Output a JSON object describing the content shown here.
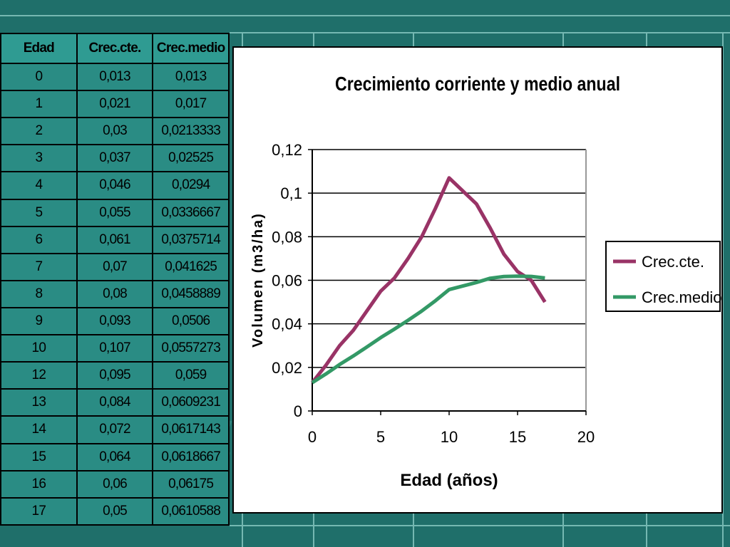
{
  "table": {
    "headers": [
      "Edad",
      "Crec.cte.",
      "Crec.medio"
    ],
    "rows": [
      [
        "0",
        "0,013",
        "0,013"
      ],
      [
        "1",
        "0,021",
        "0,017"
      ],
      [
        "2",
        "0,03",
        "0,0213333"
      ],
      [
        "3",
        "0,037",
        "0,02525"
      ],
      [
        "4",
        "0,046",
        "0,0294"
      ],
      [
        "5",
        "0,055",
        "0,0336667"
      ],
      [
        "6",
        "0,061",
        "0,0375714"
      ],
      [
        "7",
        "0,07",
        "0,041625"
      ],
      [
        "8",
        "0,08",
        "0,0458889"
      ],
      [
        "9",
        "0,093",
        "0,0506"
      ],
      [
        "10",
        "0,107",
        "0,0557273"
      ],
      [
        "12",
        "0,095",
        "0,059"
      ],
      [
        "13",
        "0,084",
        "0,0609231"
      ],
      [
        "14",
        "0,072",
        "0,0617143"
      ],
      [
        "15",
        "0,064",
        "0,0618667"
      ],
      [
        "16",
        "0,06",
        "0,06175"
      ],
      [
        "17",
        "0,05",
        "0,0610588"
      ]
    ]
  },
  "chart_data": {
    "type": "line",
    "title": "Crecimiento corriente y medio anual",
    "xlabel": "Edad (años)",
    "ylabel": "Volumen (m3/ha)",
    "xlim": [
      0,
      20
    ],
    "ylim": [
      0,
      0.12
    ],
    "xticks": [
      0,
      5,
      10,
      15,
      20
    ],
    "xtick_labels": [
      "0",
      "5",
      "10",
      "15",
      "20"
    ],
    "yticks": [
      0,
      0.02,
      0.04,
      0.06,
      0.08,
      0.1,
      0.12
    ],
    "ytick_labels": [
      "0",
      "0,02",
      "0,04",
      "0,06",
      "0,08",
      "0,1",
      "0,12"
    ],
    "grid": "horizontal",
    "legend_position": "right",
    "series": [
      {
        "name": "Crec.cte.",
        "color": "#993366",
        "x": [
          0,
          1,
          2,
          3,
          4,
          5,
          6,
          7,
          8,
          9,
          10,
          12,
          13,
          14,
          15,
          16,
          17
        ],
        "y": [
          0.013,
          0.021,
          0.03,
          0.037,
          0.046,
          0.055,
          0.061,
          0.07,
          0.08,
          0.093,
          0.107,
          0.095,
          0.084,
          0.072,
          0.064,
          0.06,
          0.05
        ]
      },
      {
        "name": "Crec.medio",
        "color": "#339966",
        "x": [
          0,
          1,
          2,
          3,
          4,
          5,
          6,
          7,
          8,
          9,
          10,
          12,
          13,
          14,
          15,
          16,
          17
        ],
        "y": [
          0.013,
          0.017,
          0.0213333,
          0.02525,
          0.0294,
          0.0336667,
          0.0375714,
          0.041625,
          0.0458889,
          0.0506,
          0.0557273,
          0.059,
          0.0609231,
          0.0617143,
          0.0618667,
          0.06175,
          0.0610588
        ]
      }
    ]
  }
}
